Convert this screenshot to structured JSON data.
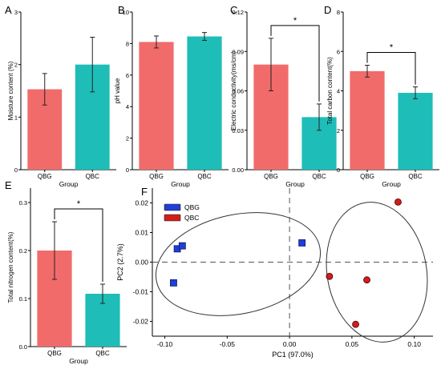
{
  "colors": {
    "qbg_bar": "#F16B6B",
    "qbc_bar": "#1FBDB8",
    "qbg_point": "#D11C1C",
    "qbc_point": "#1F3FD6"
  },
  "chart_data": [
    {
      "panel_label": "A",
      "type": "bar",
      "categories": [
        "QBG",
        "QBC"
      ],
      "values": [
        1.53,
        2.0
      ],
      "errors": [
        0.3,
        0.52
      ],
      "xlabel": "Group",
      "ylabel": "Moisture content (%)",
      "ylim": [
        0,
        3
      ],
      "yticks": [
        "0",
        "1",
        "2",
        "3"
      ],
      "significance": ""
    },
    {
      "panel_label": "B",
      "type": "bar",
      "categories": [
        "QBG",
        "QBC"
      ],
      "values": [
        8.1,
        8.45
      ],
      "errors": [
        0.38,
        0.25
      ],
      "xlabel": "Group",
      "ylabel": "pH value",
      "ylim": [
        0,
        10
      ],
      "yticks": [
        "0",
        "2",
        "4",
        "6",
        "8",
        "10"
      ],
      "significance": ""
    },
    {
      "panel_label": "C",
      "type": "bar",
      "categories": [
        "QBG",
        "QBC"
      ],
      "values": [
        0.08,
        0.04
      ],
      "errors": [
        0.02,
        0.01
      ],
      "xlabel": "Group",
      "ylabel": "Electric conductivity(ms/cm)",
      "ylim": [
        0,
        0.12
      ],
      "yticks": [
        "0.00",
        "0.03",
        "0.06",
        "0.09",
        "0.12"
      ],
      "significance": "*"
    },
    {
      "panel_label": "D",
      "type": "bar",
      "categories": [
        "QBG",
        "QBC"
      ],
      "values": [
        5.0,
        3.9
      ],
      "errors": [
        0.3,
        0.3
      ],
      "xlabel": "Group",
      "ylabel": "Total carbon content(%)",
      "ylim": [
        0,
        8
      ],
      "yticks": [
        "0",
        "2",
        "4",
        "6",
        "8"
      ],
      "significance": "*"
    },
    {
      "panel_label": "E",
      "type": "bar",
      "categories": [
        "QBG",
        "QBC"
      ],
      "values": [
        0.2,
        0.11
      ],
      "errors": [
        0.06,
        0.02
      ],
      "xlabel": "Group",
      "ylabel": "Total nitrogen content(%)",
      "ylim": [
        0,
        0.33
      ],
      "yticks": [
        "0.0",
        "0.1",
        "0.2",
        "0.3"
      ],
      "significance": "*"
    },
    {
      "panel_label": "F",
      "type": "scatter",
      "xlabel": "PC1 (97.0%)",
      "ylabel": "PC2 (2.7%)",
      "xlim": [
        -0.11,
        0.115
      ],
      "ylim": [
        -0.025,
        0.025
      ],
      "xticks": [
        "-0.10",
        "-0.05",
        "0.00",
        "0.05",
        "0.10"
      ],
      "yticks": [
        "-0.02",
        "-0.01",
        "0.00",
        "0.01",
        "0.02"
      ],
      "legend_position": "top-left",
      "series": [
        {
          "name": "QBG",
          "marker": "square",
          "x": [
            -0.09,
            -0.086,
            -0.093,
            0.01
          ],
          "y": [
            0.0045,
            0.0055,
            -0.007,
            0.0065
          ]
        },
        {
          "name": "QBC",
          "marker": "circle",
          "x": [
            0.087,
            0.032,
            0.062,
            0.053
          ],
          "y": [
            0.0203,
            -0.0048,
            -0.006,
            -0.021
          ]
        }
      ]
    }
  ]
}
